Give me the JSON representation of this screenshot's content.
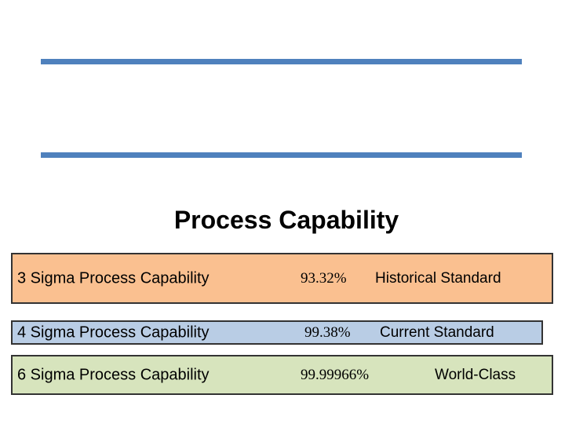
{
  "title": "Process Capability",
  "rows": [
    {
      "label": "3 Sigma Process Capability",
      "rate": "93.32%",
      "standard": "Historical Standard"
    },
    {
      "label": "4 Sigma Process Capability",
      "rate": "99.38%",
      "standard": "Current Standard"
    },
    {
      "label": "6 Sigma Process Capability",
      "rate": "99.99966%",
      "standard": "World-Class"
    }
  ]
}
